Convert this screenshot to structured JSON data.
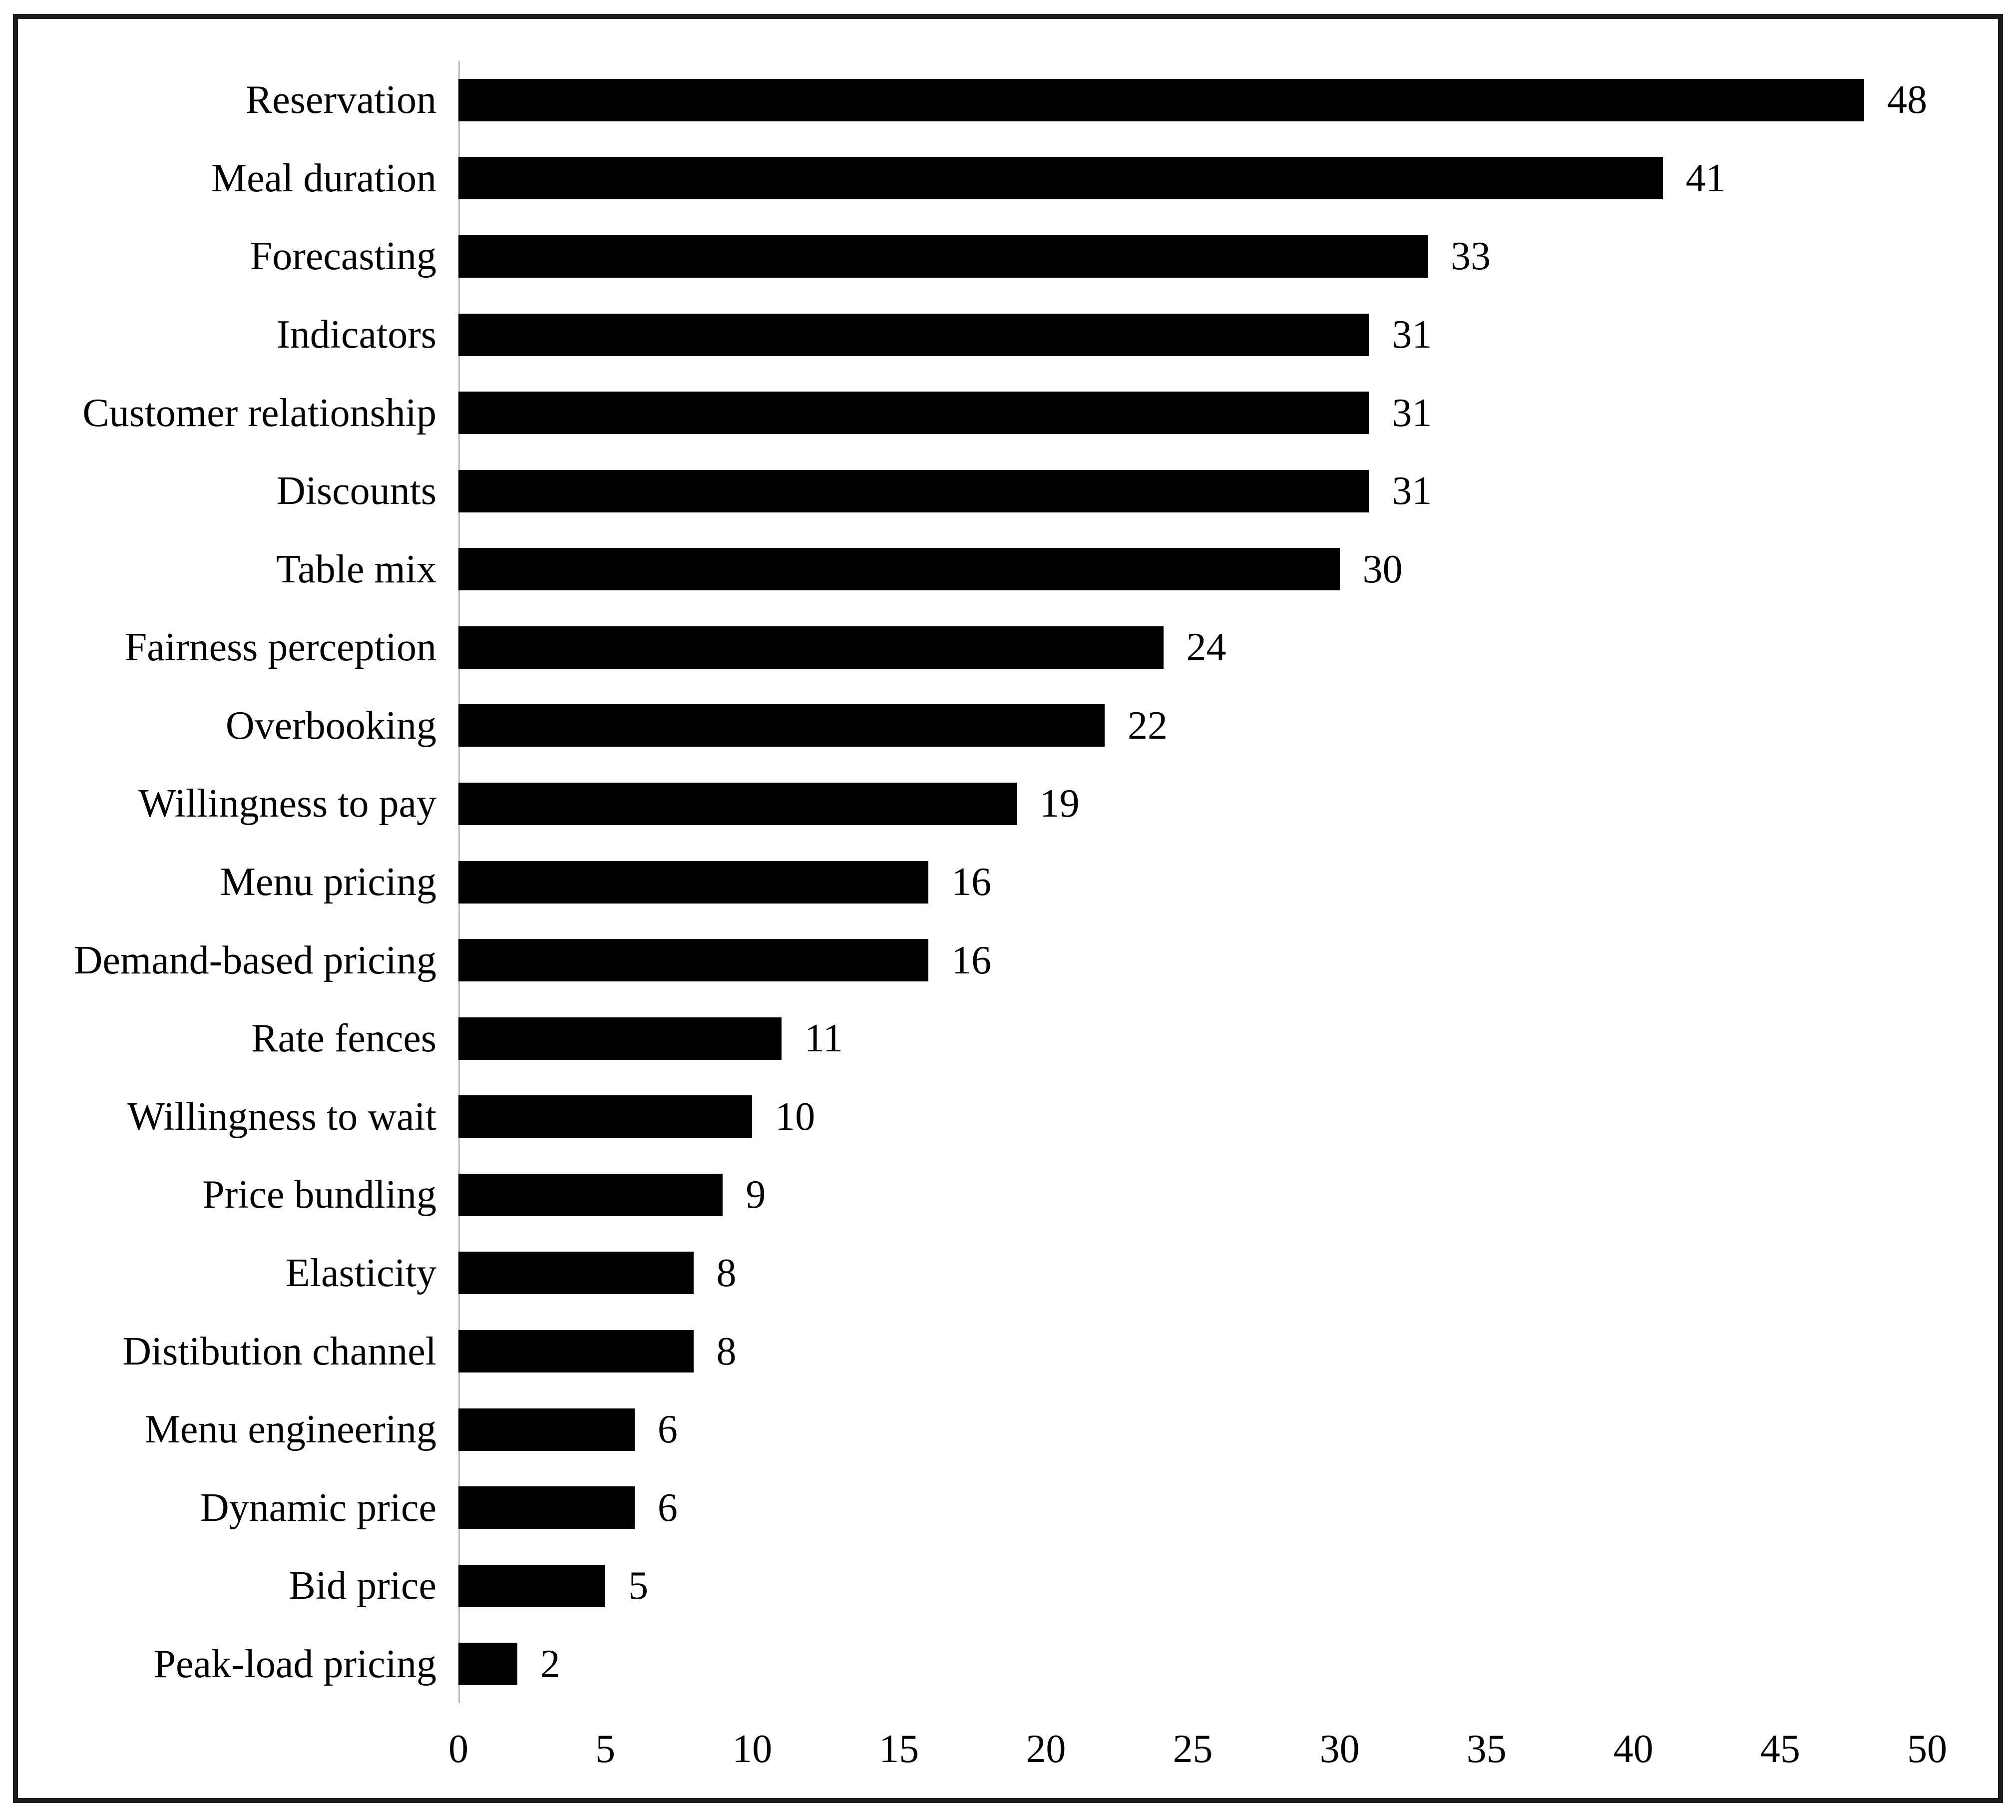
{
  "chart_data": {
    "type": "bar",
    "orientation": "horizontal",
    "title": "",
    "xlabel": "",
    "ylabel": "",
    "categories": [
      "Reservation",
      "Meal duration",
      "Forecasting",
      "Indicators",
      "Customer relationship",
      "Discounts",
      "Table mix",
      "Fairness perception",
      "Overbooking",
      "Willingness to pay",
      "Menu pricing",
      "Demand-based pricing",
      "Rate fences",
      "Willingness to wait",
      "Price bundling",
      "Elasticity",
      "Distibution channel",
      "Menu engineering",
      "Dynamic price",
      "Bid price",
      "Peak-load pricing"
    ],
    "values": [
      48,
      41,
      33,
      31,
      31,
      31,
      30,
      24,
      22,
      19,
      16,
      16,
      11,
      10,
      9,
      8,
      8,
      6,
      6,
      5,
      2
    ],
    "xlim": [
      0,
      50
    ],
    "xticks": [
      0,
      5,
      10,
      15,
      20,
      25,
      30,
      35,
      40,
      45,
      50
    ],
    "value_label_position": "outside-end",
    "bar_color": "#000000",
    "axis_line_color": "#bdbdbd",
    "frame_border_color": "#1b1b1b",
    "background_color": "#ffffff",
    "grid": false,
    "legend": "none"
  }
}
